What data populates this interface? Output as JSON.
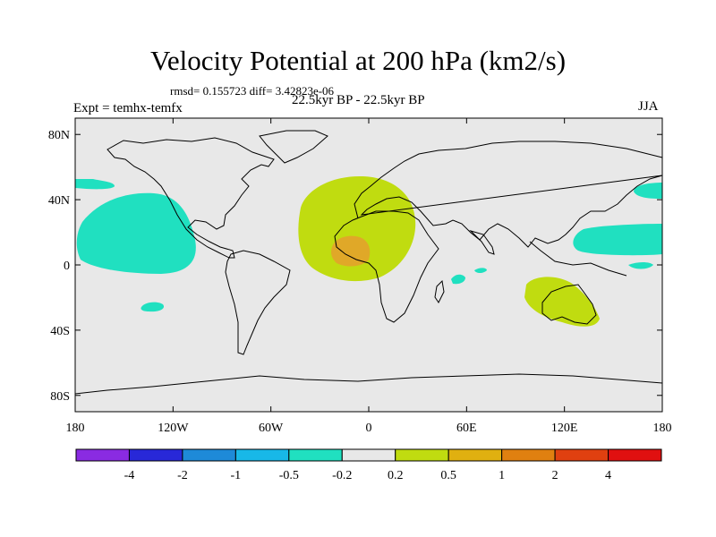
{
  "title": "Velocity Potential at 200 hPa (km2/s)",
  "stats": "rmsd= 0.155723  diff= 3.42823e-06",
  "experiment": "Expt = temhx-temfx",
  "period": "22.5kyr BP - 22.5kyr BP",
  "season": "JJA",
  "lat_labels": [
    "80N",
    "40N",
    "0",
    "40S",
    "80S"
  ],
  "lat_values": [
    80,
    40,
    0,
    -40,
    -80
  ],
  "lon_labels": [
    "180",
    "120W",
    "60W",
    "0",
    "60E",
    "120E",
    "180"
  ],
  "lon_values": [
    -180,
    -120,
    -60,
    0,
    60,
    120,
    180
  ],
  "colorbar": {
    "colors": [
      "#8a2be2",
      "#2828d8",
      "#1e8ad8",
      "#18b8e8",
      "#20e0c0",
      "#e8e8e8",
      "#c0dc10",
      "#e0b010",
      "#e08010",
      "#e04010",
      "#e01010"
    ],
    "labels": [
      "-4",
      "-2",
      "-1",
      "-0.5",
      "-0.2",
      "0.2",
      "0.5",
      "1",
      "2",
      "4"
    ]
  },
  "colors": {
    "background": "#e8e8e8",
    "positive_weak": "#c0dc10",
    "positive_mid": "#e0a828",
    "negative_weak": "#20e0c0"
  }
}
